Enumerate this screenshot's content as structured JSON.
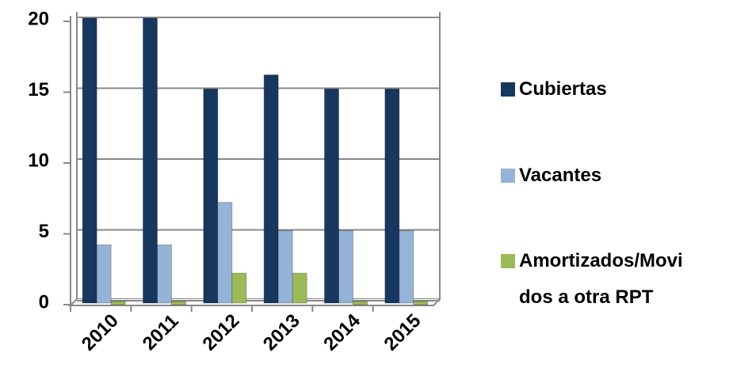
{
  "chart_data": {
    "type": "bar",
    "categories": [
      "2010",
      "2011",
      "2012",
      "2013",
      "2014",
      "2015"
    ],
    "series": [
      {
        "name": "Cubiertas",
        "color": "#17375e",
        "values": [
          20,
          20,
          15,
          16,
          15,
          15
        ]
      },
      {
        "name": "Vacantes",
        "color": "#95b3d7",
        "values": [
          4,
          4,
          7,
          5,
          5,
          5
        ]
      },
      {
        "name": "Amortizados/Movidos a otra RPT",
        "color": "#9bbb59",
        "values": [
          0,
          0,
          2,
          2,
          0,
          0
        ]
      }
    ],
    "ylim": [
      0,
      20
    ],
    "yticks": [
      0,
      5,
      10,
      15,
      20
    ],
    "grid": true,
    "legend": "right"
  }
}
